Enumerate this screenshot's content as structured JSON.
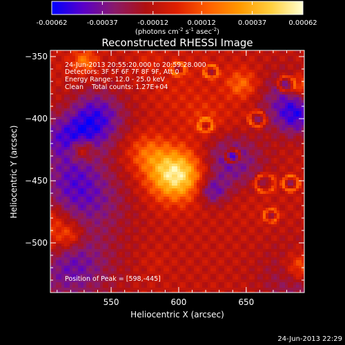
{
  "colorbar": {
    "tick_values": [
      -0.00062,
      -0.00037,
      -0.00012,
      0.00012,
      0.00037,
      0.00062
    ],
    "tick_labels": [
      "-0.00062",
      "-0.00037",
      "-0.00012",
      "0.00012",
      "0.00037",
      "0.00062"
    ],
    "unit_label": "(photons cm",
    "unit_exp1": "-2",
    "unit_mid": " s",
    "unit_exp2": "-1",
    "unit_mid2": " asec",
    "unit_exp3": "-2",
    "unit_end": ")",
    "range": [
      -0.00062,
      0.00062
    ],
    "stops": [
      "#0000ff",
      "#5a00c8",
      "#8a1a6a",
      "#b01010",
      "#e02000",
      "#ff6000",
      "#ff9a00",
      "#ffd040",
      "#ffffd0"
    ]
  },
  "chart_data": {
    "type": "heatmap",
    "title": "Reconstructed RHESSI Image",
    "xlabel": "Heliocentric X (arcsec)",
    "ylabel": "Heliocentric Y (arcsec)",
    "xlim": [
      505,
      693
    ],
    "ylim": [
      -540,
      -345
    ],
    "x_ticks": [
      550,
      600,
      650
    ],
    "y_ticks": [
      -350,
      -400,
      -450,
      -500
    ],
    "peak": {
      "x": 598,
      "y": -445
    },
    "annotations": [
      "24-Jun-2013 20:55:20.000 to 20:59:28.000",
      "Detectors: 3F 5F 6F 7F 8F 9F, Att 0",
      "Energy Range: 12.0 - 25.0 keV",
      "Clean    Total counts: 1.27E+04"
    ],
    "peak_label": "Position of Peak = [598,-445]"
  },
  "footer": {
    "timestamp": "24-Jun-2013 22:29"
  }
}
